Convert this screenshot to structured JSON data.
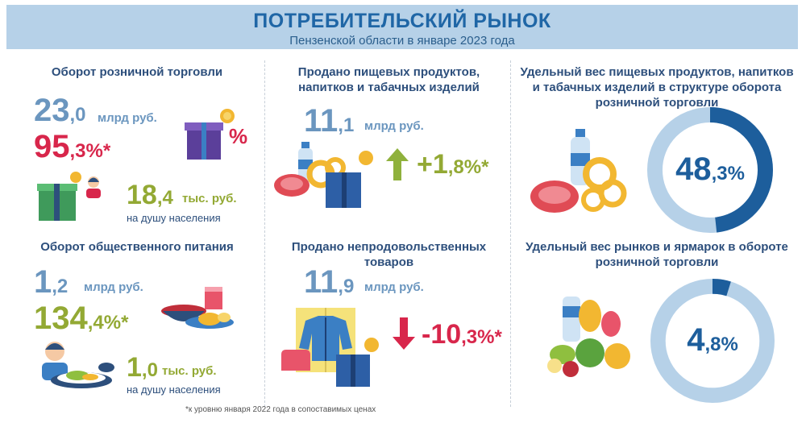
{
  "header": {
    "title": "ПОТРЕБИТЕЛЬСКИЙ РЫНОК",
    "subtitle": "Пензенской области в январе 2023 года"
  },
  "retail": {
    "title": "Оборот розничной торговли",
    "value_int": "23",
    "value_frac": ",0",
    "unit": "млрд руб.",
    "index_int": "95",
    "index_frac": ",3%*",
    "per_capita_int": "18",
    "per_capita_frac": ",4",
    "per_capita_unit": "тыс. руб.",
    "per_capita_label": "на душу населения"
  },
  "food": {
    "title": "Продано пищевых продуктов, напитков и табачных изделий",
    "value_int": "11",
    "value_frac": ",1",
    "unit": "млрд руб.",
    "change_int": "+1",
    "change_frac": ",8%*"
  },
  "food_share": {
    "title": "Удельный вес пищевых продуктов, напитков и табачных изделий в структуре оборота розничной торговли",
    "value_int": "48",
    "value_frac": ",3%",
    "percent": 48.3
  },
  "catering": {
    "title": "Оборот общественного питания",
    "value_int": "1",
    "value_frac": ",2",
    "unit": "млрд руб.",
    "index_int": "134",
    "index_frac": ",4%*",
    "per_capita_int": "1",
    "per_capita_frac": ",0",
    "per_capita_unit": "тыс. руб.",
    "per_capita_label": "на душу населения"
  },
  "nonfood": {
    "title": "Продано непродовольственных товаров",
    "value_int": "11",
    "value_frac": ",9",
    "unit": "млрд руб.",
    "change_int": "-10",
    "change_frac": ",3%*"
  },
  "markets_share": {
    "title": "Удельный вес рынков и ярмарок в обороте розничной торговли",
    "value_int": "4",
    "value_frac": ",8%",
    "percent": 4.8
  },
  "footnote": "*к уровню января 2022 года в сопоставимых ценах",
  "colors": {
    "header_bg": "#b6d1e8",
    "title": "#1f66a6",
    "value_blue": "#6b96bf",
    "value_red": "#d8264b",
    "value_green": "#93a934",
    "ring_dark": "#1d5e9c",
    "ring_light": "#b6d1e8"
  },
  "icons": [
    "percent-gift-icon",
    "gift-box-icon",
    "person-icon",
    "arrow-up-icon",
    "arrow-down-icon",
    "food-products-icon",
    "clothes-icon",
    "dishes-icon",
    "vegetables-icon"
  ]
}
